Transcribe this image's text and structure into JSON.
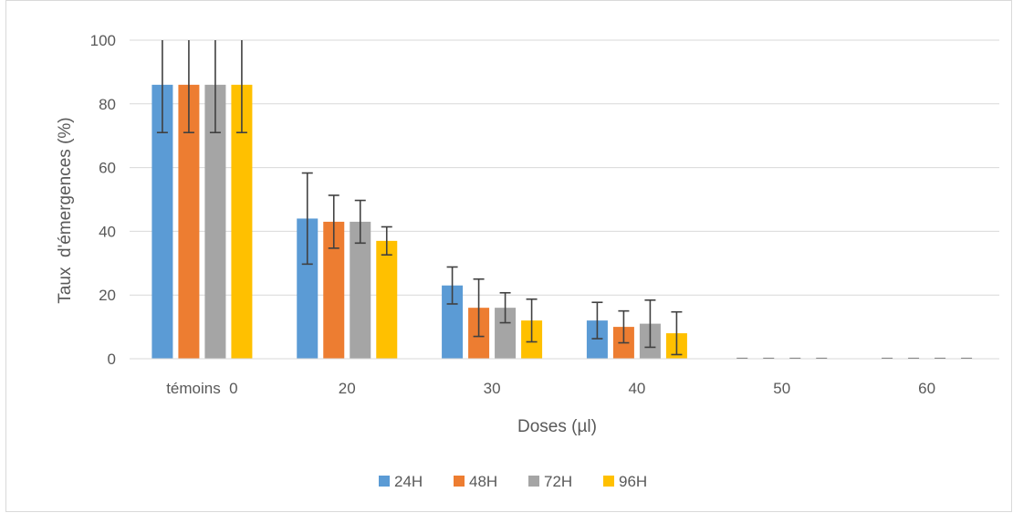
{
  "chart_data": {
    "type": "bar",
    "title": "",
    "xlabel": "Doses (µl)",
    "ylabel": "Taux  d'émergences (%)",
    "categories": [
      "témoins  0",
      "20",
      "30",
      "40",
      "50",
      "60"
    ],
    "ylim": [
      0,
      100
    ],
    "yticks": [
      0,
      20,
      40,
      60,
      80,
      100
    ],
    "grid": true,
    "legend_position": "bottom",
    "series": [
      {
        "name": "24H",
        "color": "#5B9BD5",
        "values": [
          86,
          44,
          23,
          12,
          0,
          0
        ],
        "errors": [
          15,
          14.3,
          5.8,
          5.7,
          0,
          0
        ]
      },
      {
        "name": "48H",
        "color": "#ED7D31",
        "values": [
          86,
          43,
          16,
          10,
          0,
          0
        ],
        "errors": [
          15,
          8.3,
          9,
          5,
          0,
          0
        ]
      },
      {
        "name": "72H",
        "color": "#A5A5A5",
        "values": [
          86,
          43,
          16,
          11,
          0,
          0
        ],
        "errors": [
          15,
          6.7,
          4.7,
          7.4,
          0,
          0
        ]
      },
      {
        "name": "96H",
        "color": "#FFC000",
        "values": [
          86,
          37,
          12,
          8,
          0,
          0
        ],
        "errors": [
          15,
          4.4,
          6.7,
          6.7,
          0,
          0
        ]
      }
    ]
  }
}
